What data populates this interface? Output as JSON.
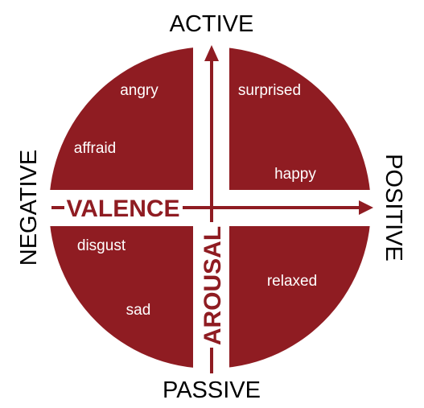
{
  "poles": {
    "top": "ACTIVE",
    "bottom": "PASSIVE",
    "left": "NEGATIVE",
    "right": "POSITIVE"
  },
  "axes": {
    "horizontal": "VALENCE",
    "vertical": "AROUSAL"
  },
  "emotions": {
    "angry": "angry",
    "affraid": "affraid",
    "surprised": "surprised",
    "happy": "happy",
    "disgust": "disgust",
    "sad": "sad",
    "relaxed": "relaxed"
  },
  "colors": {
    "fill": "#8f1c22",
    "text_on_fill": "#ffffff",
    "pole_text": "#000000"
  }
}
